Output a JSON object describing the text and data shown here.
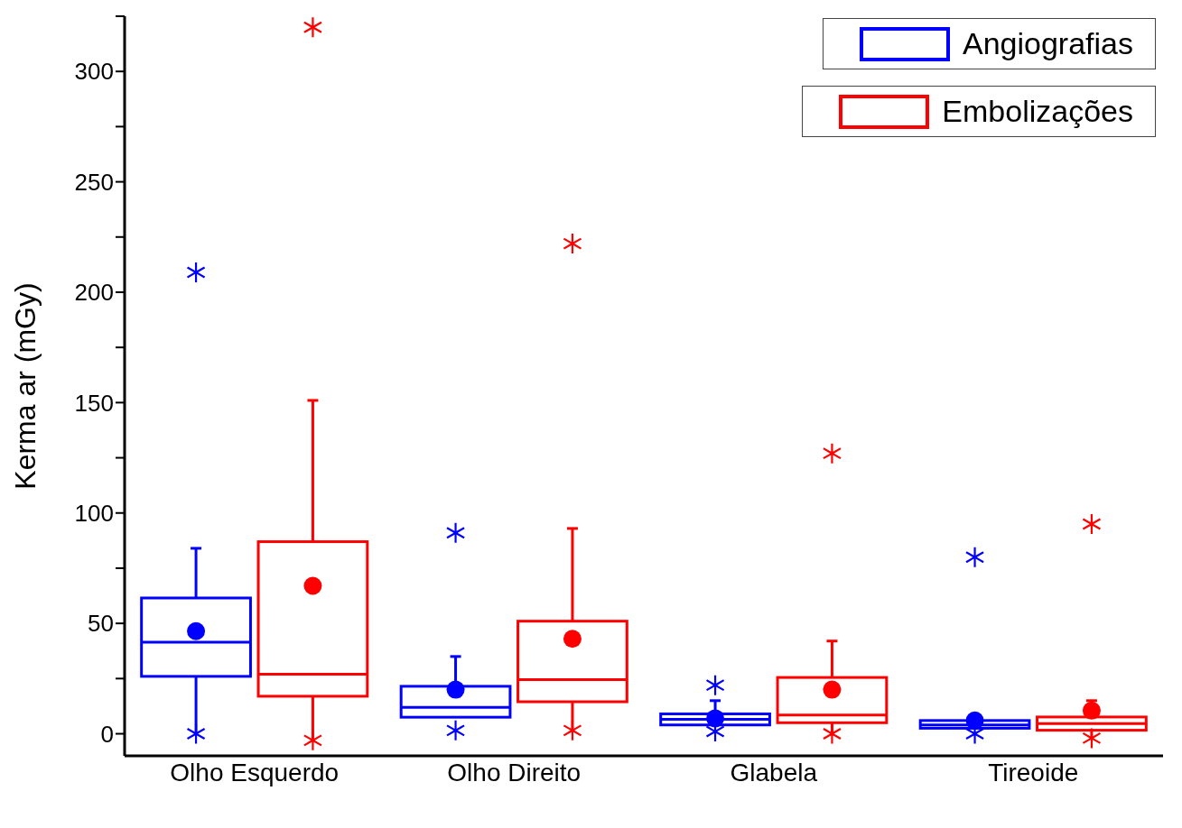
{
  "chart_data": {
    "type": "box",
    "ylabel": "Kerma ar (mGy)",
    "categories": [
      "Olho Esquerdo",
      "Olho Direito",
      "Glabela",
      "Tireoide"
    ],
    "ylim": [
      -10,
      325
    ],
    "yticks": [
      0,
      {
        "value": 25,
        "label": null
      },
      50,
      {
        "value": 75,
        "label": null
      },
      100,
      {
        "value": 125,
        "label": null
      },
      150,
      {
        "value": 175,
        "label": null
      },
      200,
      {
        "value": 225,
        "label": null
      },
      250,
      {
        "value": 275,
        "label": null
      },
      300,
      {
        "value": 325,
        "label": null
      }
    ],
    "legend": "top right",
    "series": [
      {
        "name": "Angiografias",
        "color": "#0000ff",
        "boxes": [
          {
            "low": 0,
            "q1": 26,
            "median": 41.5,
            "q3": 61.5,
            "high": 84,
            "mean": 46.5,
            "outliers": [
              0,
              209
            ]
          },
          {
            "low": 7.5,
            "q1": 7.5,
            "median": 12,
            "q3": 21.5,
            "high": 35,
            "mean": 20,
            "outliers": [
              1.5,
              91
            ]
          },
          {
            "low": 4,
            "q1": 4,
            "median": 6.5,
            "q3": 9,
            "high": 15,
            "mean": 7,
            "outliers": [
              1,
              22
            ]
          },
          {
            "low": 2.5,
            "q1": 2.5,
            "median": 4,
            "q3": 6,
            "high": 6,
            "mean": 6,
            "outliers": [
              0,
              80
            ]
          }
        ]
      },
      {
        "name": "Embolizações",
        "color": "#ff0000",
        "boxes": [
          {
            "low": -3,
            "q1": 17,
            "median": 27,
            "q3": 87,
            "high": 151,
            "mean": 67,
            "outliers": [
              -3,
              320
            ]
          },
          {
            "low": 1.5,
            "q1": 14.5,
            "median": 24.5,
            "q3": 51,
            "high": 93,
            "mean": 43,
            "outliers": [
              1.5,
              222
            ]
          },
          {
            "low": 0,
            "q1": 5,
            "median": 8.5,
            "q3": 25.5,
            "high": 42,
            "mean": 20,
            "outliers": [
              0,
              127
            ]
          },
          {
            "low": -2,
            "q1": 1.6,
            "median": 4.6,
            "q3": 7.6,
            "high": 15,
            "mean": 10.5,
            "outliers": [
              -2,
              95
            ]
          }
        ]
      }
    ]
  }
}
